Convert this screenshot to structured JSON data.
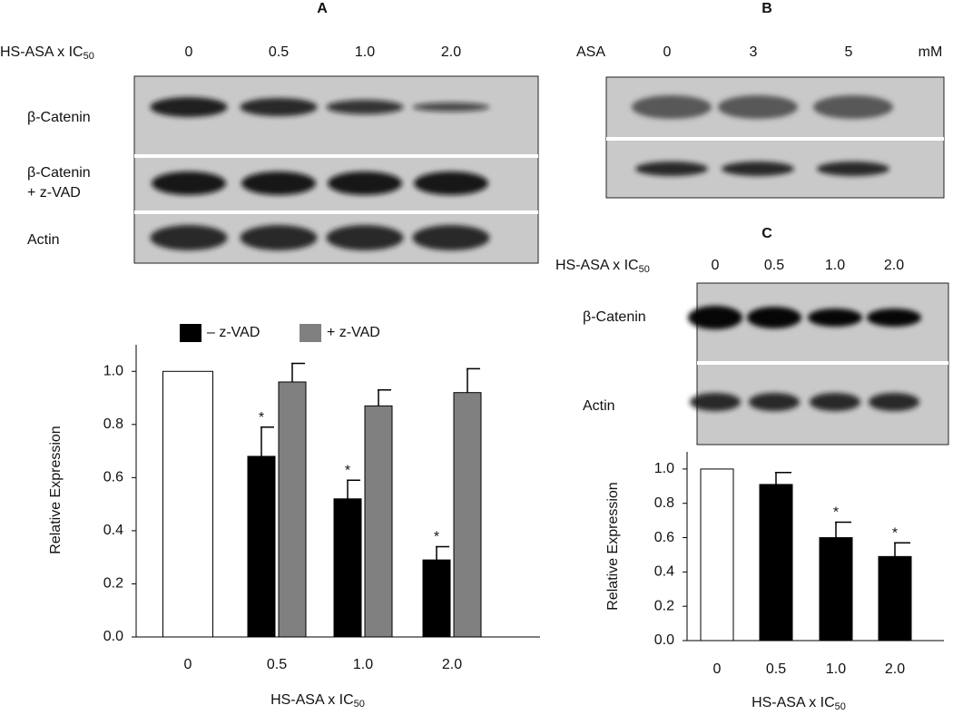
{
  "panel_a": {
    "label": "A",
    "treatment": {
      "text": "HS-ASA x IC",
      "sub": "50"
    },
    "lanes": [
      "0",
      "0.5",
      "1.0",
      "2.0"
    ],
    "rows": [
      [
        "β-Catenin"
      ],
      [
        "β-Catenin",
        "+ z-VAD"
      ],
      [
        "Actin"
      ]
    ]
  },
  "panel_b": {
    "label": "B",
    "treatment": "ASA",
    "lanes": [
      "0",
      "3",
      "5"
    ],
    "unit": "mM"
  },
  "panel_c": {
    "label": "C",
    "treatment": {
      "text": "HS-ASA x IC",
      "sub": "50"
    },
    "lanes": [
      "0",
      "0.5",
      "1.0",
      "2.0"
    ],
    "rows": [
      [
        "β-Catenin"
      ],
      [
        "Actin"
      ]
    ]
  },
  "chart_data": [
    {
      "type": "bar",
      "ylabel": "Relative Expression",
      "xlabel": {
        "text": "HS-ASA x IC",
        "sub": "50"
      },
      "categories": [
        "0",
        "0.5",
        "1.0",
        "2.0"
      ],
      "series": [
        {
          "name": "– z-VAD",
          "color": "#000000",
          "point_colors": [
            "#ffffff",
            "#000000",
            "#000000",
            "#000000"
          ],
          "values": [
            1.0,
            0.68,
            0.52,
            0.29
          ],
          "errors": [
            null,
            0.11,
            0.07,
            0.05
          ],
          "markers": [
            null,
            "*",
            "*",
            "*"
          ]
        },
        {
          "name": "+ z-VAD",
          "color": "#808080",
          "values": [
            null,
            0.96,
            0.87,
            0.92
          ],
          "errors": [
            null,
            0.07,
            0.06,
            0.09
          ]
        }
      ],
      "ylim": [
        0,
        1.1
      ],
      "yticks": [
        {
          "value": 0,
          "label": "0.0"
        },
        {
          "value": 0.2,
          "label": "0.2"
        },
        {
          "value": 0.4,
          "label": "0.4"
        },
        {
          "value": 0.6,
          "label": "0.6"
        },
        {
          "value": 0.8,
          "label": "0.8"
        },
        {
          "value": 1,
          "label": "1.0"
        }
      ],
      "legend": "top"
    },
    {
      "type": "bar",
      "ylabel": "Relative Expression",
      "xlabel": {
        "text": "HS-ASA x IC",
        "sub": "50"
      },
      "categories": [
        "0",
        "0.5",
        "1.0",
        "2.0"
      ],
      "series": [
        {
          "name": null,
          "color": "#000000",
          "point_colors": [
            "#ffffff",
            "#000000",
            "#000000",
            "#000000"
          ],
          "values": [
            1.0,
            0.91,
            0.6,
            0.49
          ],
          "errors": [
            null,
            0.07,
            0.09,
            0.08
          ],
          "markers": [
            null,
            null,
            "*",
            "*"
          ]
        }
      ],
      "ylim": [
        0,
        1.1
      ],
      "yticks": [
        {
          "value": 0,
          "label": "0.0"
        },
        {
          "value": 0.2,
          "label": "0.2"
        },
        {
          "value": 0.4,
          "label": "0.4"
        },
        {
          "value": 0.6,
          "label": "0.6"
        },
        {
          "value": 0.8,
          "label": "0.8"
        },
        {
          "value": 1,
          "label": "1.0"
        }
      ]
    }
  ]
}
